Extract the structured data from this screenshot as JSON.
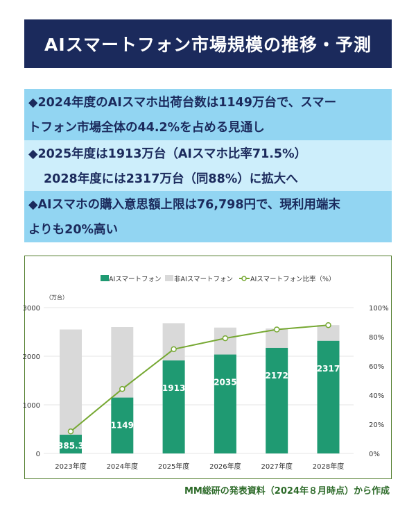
{
  "title": "AIスマートフォン市場規模の推移・予測",
  "bullets": [
    {
      "lines": [
        "◆2024年度のAIスマホ出荷台数は1149万台で、スマー",
        "トフォン市場全体の44.2%を占める見通し"
      ]
    },
    {
      "lines": [
        "◆2025年度は1913万台（AIスマホ比率71.5%）",
        "2028年度には2317万台（同88%）に拡大へ"
      ]
    },
    {
      "lines": [
        "◆AIスマホの購入意思額上限は76,798円で、現利用端末",
        "よりも20%高い"
      ]
    }
  ],
  "source": "MM総研の発表資料（2024年８月時点）から作成",
  "colors": {
    "ai": "#1f9a72",
    "non_ai": "#d9d9d9",
    "ratio": "#76a832",
    "navy": "#1b2a5c"
  },
  "chart_data": {
    "type": "bar",
    "stacked": true,
    "categories": [
      "2023年度",
      "2024年度",
      "2025年度",
      "2026年度",
      "2027年度",
      "2028年度"
    ],
    "series": [
      {
        "name": "AIスマートフォン",
        "values": [
          385.3,
          1149,
          1913,
          2035,
          2172,
          2317
        ],
        "labels": [
          "385.3",
          "1149",
          "1913",
          "2035",
          "2172",
          "2317"
        ]
      },
      {
        "name": "非AIスマートフォン",
        "values": [
          2165,
          1451,
          767,
          555,
          398,
          323
        ]
      },
      {
        "name": "AIスマートフォン比率（%）",
        "type": "line",
        "axis": "right",
        "values": [
          15.1,
          44.2,
          71.5,
          79,
          85,
          88
        ]
      }
    ],
    "y_unit": "（万台）",
    "ylim": [
      0,
      3000
    ],
    "yticks": [
      "0",
      "1000",
      "2000",
      "3000"
    ],
    "y2lim": [
      0,
      100
    ],
    "y2ticks": [
      "0%",
      "20%",
      "40%",
      "60%",
      "80%",
      "100%"
    ],
    "grid": true,
    "legend": "top"
  }
}
